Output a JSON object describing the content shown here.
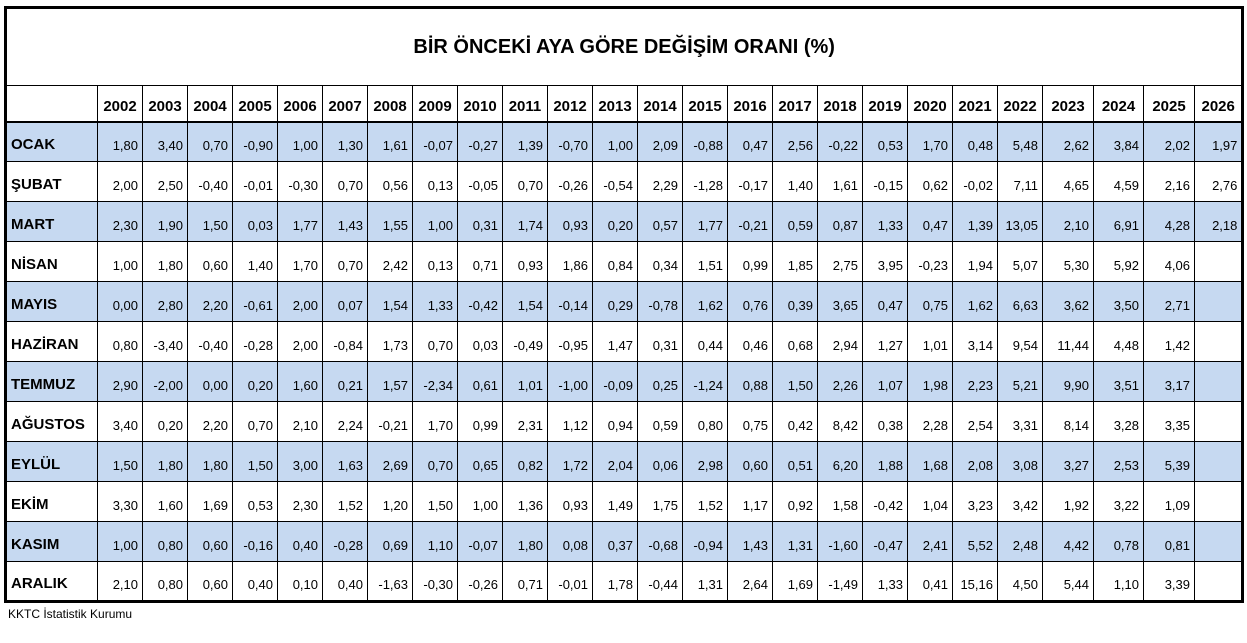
{
  "title": "BİR ÖNCEKİ AYA GÖRE DEĞİŞİM ORANI (%)",
  "source_note": "KKTC İstatistik Kurumu",
  "colors": {
    "stripe_blue": "#c6d9f1",
    "row_white": "#ffffff",
    "border": "#000000"
  },
  "chart_data": {
    "type": "table",
    "title": "BİR ÖNCEKİ AYA GÖRE DEĞİŞİM ORANI (%)",
    "corner_label": "",
    "years": [
      "2002",
      "2003",
      "2004",
      "2005",
      "2006",
      "2007",
      "2008",
      "2009",
      "2010",
      "2011",
      "2012",
      "2013",
      "2014",
      "2015",
      "2016",
      "2017",
      "2018",
      "2019",
      "2020",
      "2021",
      "2022",
      "2023",
      "2024",
      "2025",
      "2026"
    ],
    "rows": [
      {
        "label": "OCAK",
        "values": [
          "1,80",
          "3,40",
          "0,70",
          "-0,90",
          "1,00",
          "1,30",
          "1,61",
          "-0,07",
          "-0,27",
          "1,39",
          "-0,70",
          "1,00",
          "2,09",
          "-0,88",
          "0,47",
          "2,56",
          "-0,22",
          "0,53",
          "1,70",
          "0,48",
          "5,48",
          "2,62",
          "3,84",
          "2,02",
          "1,97"
        ]
      },
      {
        "label": "ŞUBAT",
        "values": [
          "2,00",
          "2,50",
          "-0,40",
          "-0,01",
          "-0,30",
          "0,70",
          "0,56",
          "0,13",
          "-0,05",
          "0,70",
          "-0,26",
          "-0,54",
          "2,29",
          "-1,28",
          "-0,17",
          "1,40",
          "1,61",
          "-0,15",
          "0,62",
          "-0,02",
          "7,11",
          "4,65",
          "4,59",
          "2,16",
          "2,76"
        ]
      },
      {
        "label": "MART",
        "values": [
          "2,30",
          "1,90",
          "1,50",
          "0,03",
          "1,77",
          "1,43",
          "1,55",
          "1,00",
          "0,31",
          "1,74",
          "0,93",
          "0,20",
          "0,57",
          "1,77",
          "-0,21",
          "0,59",
          "0,87",
          "1,33",
          "0,47",
          "1,39",
          "13,05",
          "2,10",
          "6,91",
          "4,28",
          "2,18"
        ]
      },
      {
        "label": "NİSAN",
        "values": [
          "1,00",
          "1,80",
          "0,60",
          "1,40",
          "1,70",
          "0,70",
          "2,42",
          "0,13",
          "0,71",
          "0,93",
          "1,86",
          "0,84",
          "0,34",
          "1,51",
          "0,99",
          "1,85",
          "2,75",
          "3,95",
          "-0,23",
          "1,94",
          "5,07",
          "5,30",
          "5,92",
          "4,06",
          ""
        ]
      },
      {
        "label": "MAYIS",
        "values": [
          "0,00",
          "2,80",
          "2,20",
          "-0,61",
          "2,00",
          "0,07",
          "1,54",
          "1,33",
          "-0,42",
          "1,54",
          "-0,14",
          "0,29",
          "-0,78",
          "1,62",
          "0,76",
          "0,39",
          "3,65",
          "0,47",
          "0,75",
          "1,62",
          "6,63",
          "3,62",
          "3,50",
          "2,71",
          ""
        ]
      },
      {
        "label": "HAZİRAN",
        "values": [
          "0,80",
          "-3,40",
          "-0,40",
          "-0,28",
          "2,00",
          "-0,84",
          "1,73",
          "0,70",
          "0,03",
          "-0,49",
          "-0,95",
          "1,47",
          "0,31",
          "0,44",
          "0,46",
          "0,68",
          "2,94",
          "1,27",
          "1,01",
          "3,14",
          "9,54",
          "11,44",
          "4,48",
          "1,42",
          ""
        ]
      },
      {
        "label": "TEMMUZ",
        "values": [
          "2,90",
          "-2,00",
          "0,00",
          "0,20",
          "1,60",
          "0,21",
          "1,57",
          "-2,34",
          "0,61",
          "1,01",
          "-1,00",
          "-0,09",
          "0,25",
          "-1,24",
          "0,88",
          "1,50",
          "2,26",
          "1,07",
          "1,98",
          "2,23",
          "5,21",
          "9,90",
          "3,51",
          "3,17",
          ""
        ]
      },
      {
        "label": "AĞUSTOS",
        "values": [
          "3,40",
          "0,20",
          "2,20",
          "0,70",
          "2,10",
          "2,24",
          "-0,21",
          "1,70",
          "0,99",
          "2,31",
          "1,12",
          "0,94",
          "0,59",
          "0,80",
          "0,75",
          "0,42",
          "8,42",
          "0,38",
          "2,28",
          "2,54",
          "3,31",
          "8,14",
          "3,28",
          "3,35",
          ""
        ]
      },
      {
        "label": "EYLÜL",
        "values": [
          "1,50",
          "1,80",
          "1,80",
          "1,50",
          "3,00",
          "1,63",
          "2,69",
          "0,70",
          "0,65",
          "0,82",
          "1,72",
          "2,04",
          "0,06",
          "2,98",
          "0,60",
          "0,51",
          "6,20",
          "1,88",
          "1,68",
          "2,08",
          "3,08",
          "3,27",
          "2,53",
          "5,39",
          ""
        ]
      },
      {
        "label": "EKİM",
        "values": [
          "3,30",
          "1,60",
          "1,69",
          "0,53",
          "2,30",
          "1,52",
          "1,20",
          "1,50",
          "1,00",
          "1,36",
          "0,93",
          "1,49",
          "1,75",
          "1,52",
          "1,17",
          "0,92",
          "1,58",
          "-0,42",
          "1,04",
          "3,23",
          "3,42",
          "1,92",
          "3,22",
          "1,09",
          ""
        ]
      },
      {
        "label": "KASIM",
        "values": [
          "1,00",
          "0,80",
          "0,60",
          "-0,16",
          "0,40",
          "-0,28",
          "0,69",
          "1,10",
          "-0,07",
          "1,80",
          "0,08",
          "0,37",
          "-0,68",
          "-0,94",
          "1,43",
          "1,31",
          "-1,60",
          "-0,47",
          "2,41",
          "5,52",
          "2,48",
          "4,42",
          "0,78",
          "0,81",
          ""
        ]
      },
      {
        "label": "ARALIK",
        "values": [
          "2,10",
          "0,80",
          "0,60",
          "0,40",
          "0,10",
          "0,40",
          "-1,63",
          "-0,30",
          "-0,26",
          "0,71",
          "-0,01",
          "1,78",
          "-0,44",
          "1,31",
          "2,64",
          "1,69",
          "-1,49",
          "1,33",
          "0,41",
          "15,16",
          "4,50",
          "5,44",
          "1,10",
          "3,39",
          ""
        ]
      }
    ]
  }
}
